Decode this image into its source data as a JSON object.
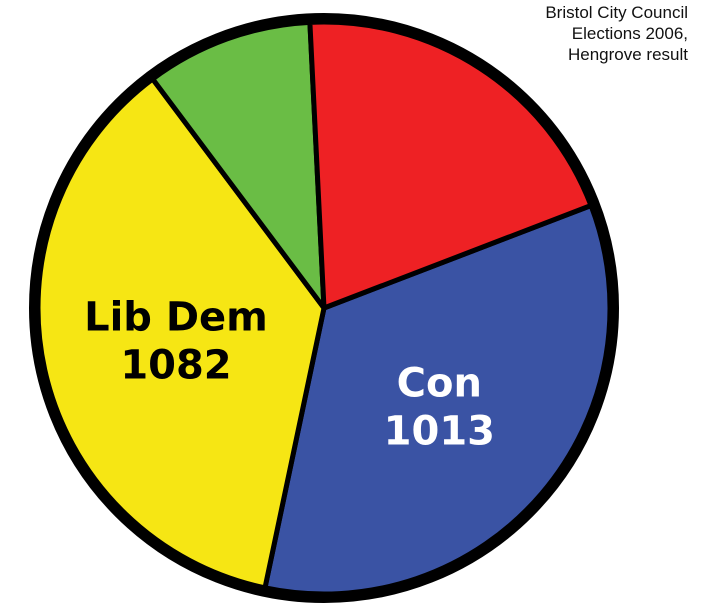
{
  "chart_data": {
    "type": "pie",
    "title": [
      "Bristol City Council",
      "Elections 2006,",
      "Hengrove result"
    ],
    "slices": [
      {
        "name": "Con",
        "value": 1013,
        "value_label": "1013",
        "color": "#3a53a4",
        "labeled": true
      },
      {
        "name": "Lib Dem",
        "value": 1082,
        "value_label": "1082",
        "color": "#f6e614",
        "labeled": true
      },
      {
        "name": "",
        "value": 280,
        "value_label": "",
        "color": "#6abd45",
        "labeled": false
      },
      {
        "name": "",
        "value": 592,
        "value_label": "",
        "color": "#ee2124",
        "labeled": false
      }
    ],
    "label_color": "#ffffff",
    "label_color_dark": "#000000",
    "outline_color": "#000000"
  }
}
